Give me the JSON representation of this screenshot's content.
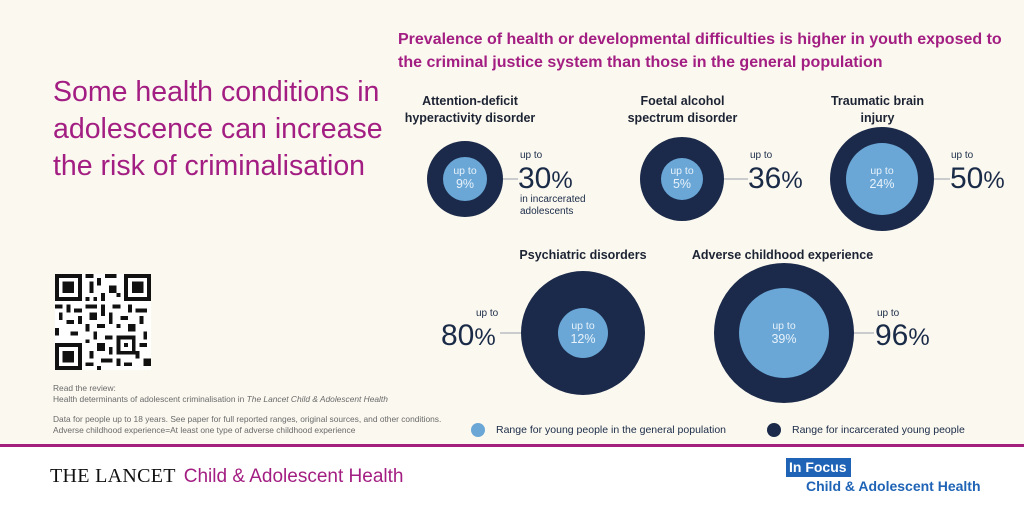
{
  "headline": "Some health conditions in adolescence can increase the risk of criminalisation",
  "subtitle": "Prevalence of health or developmental difficulties is higher in youth exposed to the criminal justice system than those in the general population",
  "read_intro": "Read the review:",
  "read_prefix": "Health determinants of adolescent criminalisation in",
  "read_journal": "The Lancet Child & Adolescent Health",
  "notes": [
    "Data for people up to 18 years.  See paper for full reported ranges, original sources, and other conditions.",
    "Adverse childhood experience=At least one type of adverse childhood experience"
  ],
  "colors": {
    "general": "#6aa7d6",
    "incarcerated": "#1b2a4a",
    "accent": "#a31e82"
  },
  "conditions": [
    {
      "id": "adhd",
      "label_lines": [
        "Attention-deficit",
        "hyperactivity disorder"
      ],
      "general_prefix": "up to",
      "general_value": "9%",
      "incarcerated_prefix": "up to",
      "incarcerated_num": "30",
      "incarcerated_unit": "%",
      "note_lines": [
        "in incarcerated",
        "adolescents"
      ]
    },
    {
      "id": "fasd",
      "label_lines": [
        "Foetal alcohol",
        "spectrum disorder"
      ],
      "general_prefix": "up to",
      "general_value": "5%",
      "incarcerated_prefix": "up to",
      "incarcerated_num": "36",
      "incarcerated_unit": "%"
    },
    {
      "id": "tbi",
      "label_lines": [
        "Traumatic brain",
        "injury"
      ],
      "general_prefix": "up to",
      "general_value": "24%",
      "incarcerated_prefix": "up to",
      "incarcerated_num": "50",
      "incarcerated_unit": "%"
    },
    {
      "id": "psych",
      "label_lines": [
        "Psychiatric disorders"
      ],
      "general_prefix": "up to",
      "general_value": "12%",
      "incarcerated_prefix": "up to",
      "incarcerated_num": "80",
      "incarcerated_unit": "%"
    },
    {
      "id": "ace",
      "label_lines": [
        "Adverse childhood experience"
      ],
      "general_prefix": "up to",
      "general_value": "39%",
      "incarcerated_prefix": "up to",
      "incarcerated_num": "96",
      "incarcerated_unit": "%"
    }
  ],
  "legend": {
    "general": "Range for young people in the general population",
    "incarcerated": "Range for incarcerated young people"
  },
  "footer": {
    "brand": "THE LANCET",
    "journal": "Child & Adolescent Health",
    "in_focus": "In Focus",
    "in_focus_sub": "Child & Adolescent Health"
  }
}
